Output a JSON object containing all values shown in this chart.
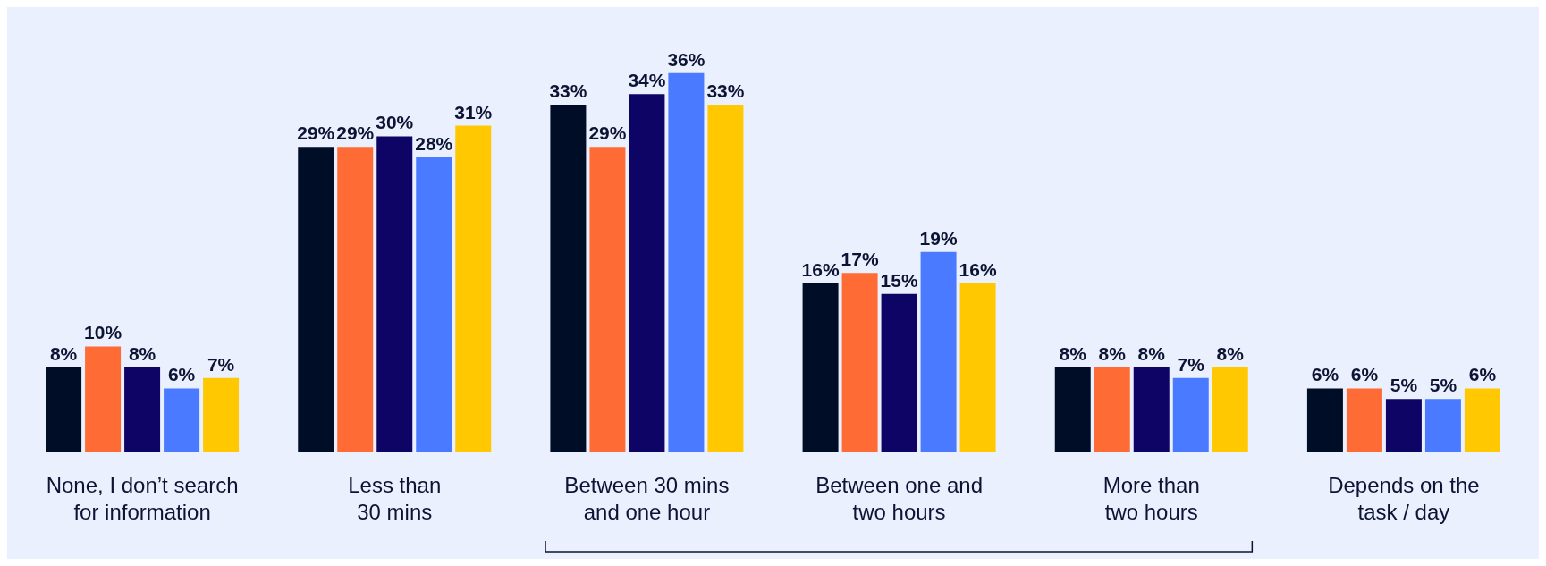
{
  "chart_data": {
    "type": "bar",
    "categories": [
      "None, I don’t search\nfor information",
      "Less than\n30 mins",
      "Between 30 mins\nand one hour",
      "Between one and\ntwo hours",
      "More than\ntwo hours",
      "Depends on the\ntask / day"
    ],
    "series": [
      {
        "color": "#000d26",
        "values": [
          8,
          29,
          33,
          16,
          8,
          6
        ],
        "value_labels": [
          "8%",
          "29%",
          "33%",
          "16%",
          "8%",
          "6%"
        ]
      },
      {
        "color": "#ff6b35",
        "values": [
          10,
          29,
          29,
          17,
          8,
          6
        ],
        "value_labels": [
          "10%",
          "29%",
          "29%",
          "17%",
          "8%",
          "6%"
        ]
      },
      {
        "color": "#0d0466",
        "values": [
          8,
          30,
          34,
          15,
          8,
          5
        ],
        "value_labels": [
          "8%",
          "30%",
          "34%",
          "15%",
          "8%",
          "5%"
        ]
      },
      {
        "color": "#4a7aff",
        "values": [
          6,
          28,
          36,
          19,
          7,
          5
        ],
        "value_labels": [
          "6%",
          "28%",
          "36%",
          "19%",
          "7%",
          "5%"
        ]
      },
      {
        "color": "#ffc800",
        "values": [
          7,
          31,
          33,
          16,
          8,
          6
        ],
        "value_labels": [
          "7%",
          "31%",
          "33%",
          "16%",
          "8%",
          "6%"
        ]
      }
    ]
  }
}
